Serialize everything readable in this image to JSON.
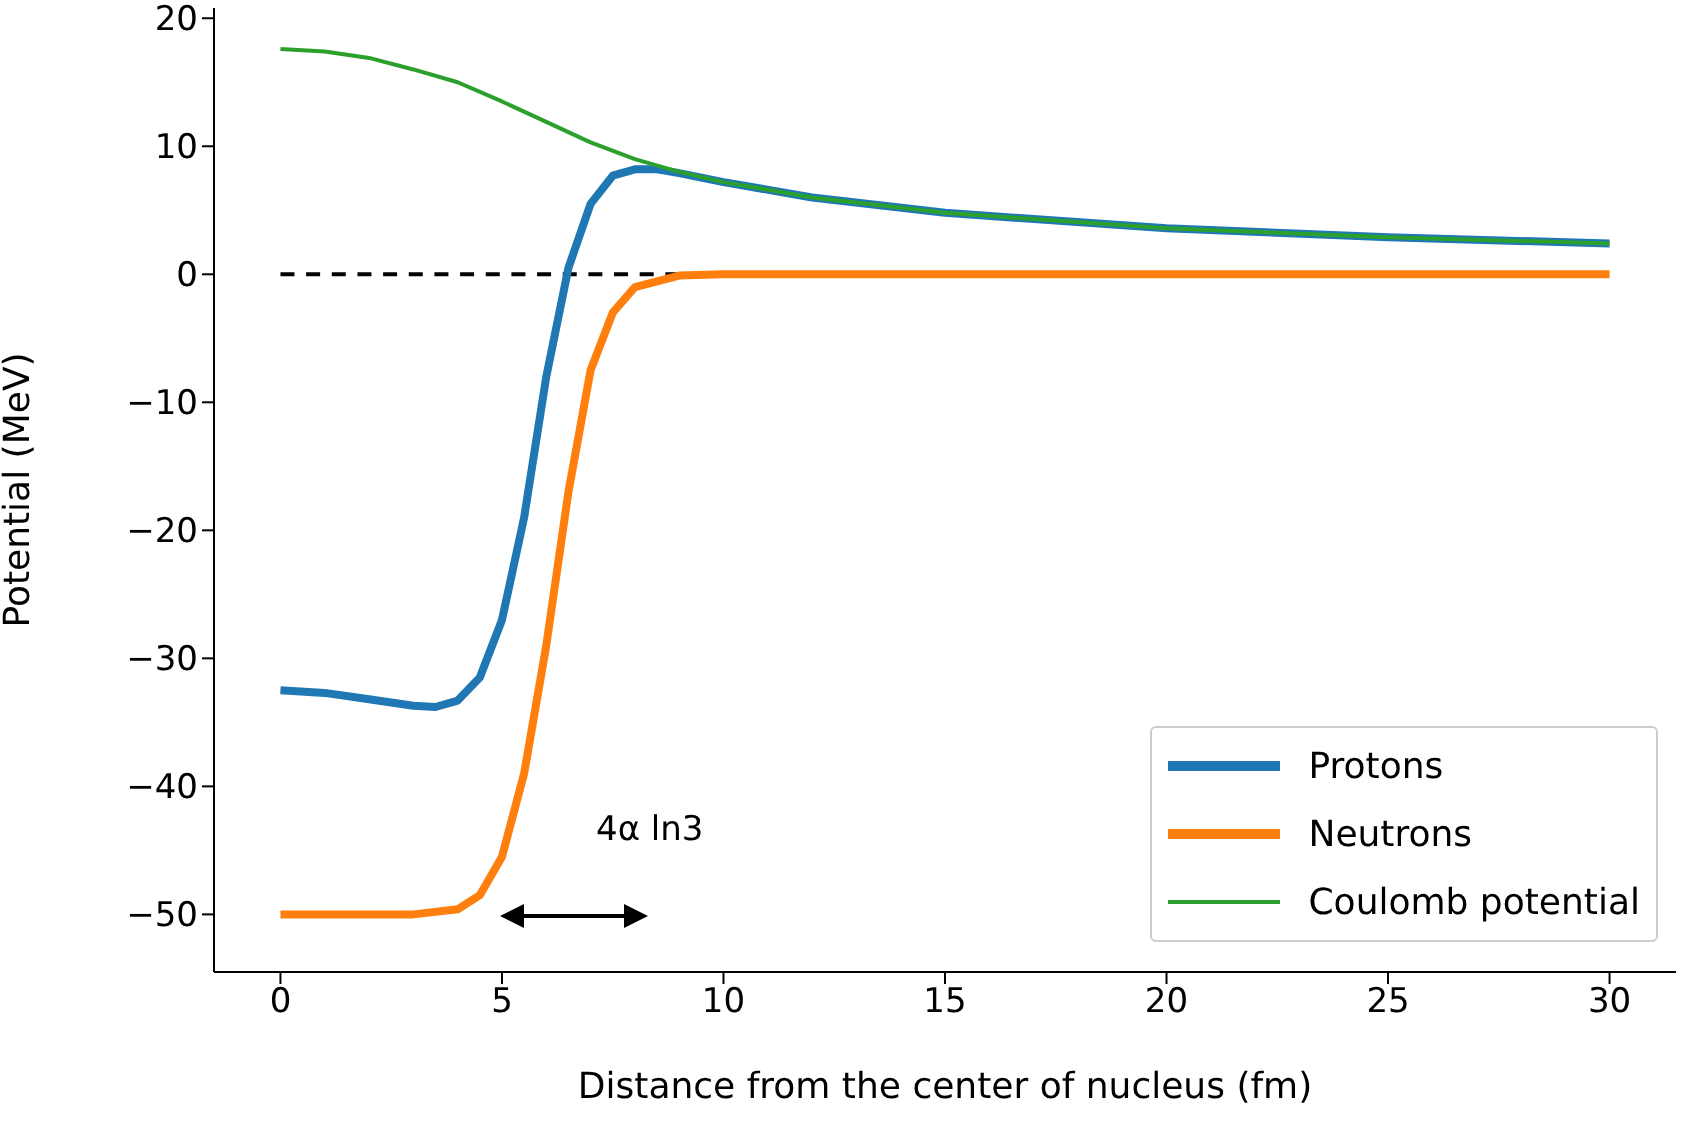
{
  "chart_data": {
    "type": "line",
    "xlabel": "Distance from the center of nucleus (fm)",
    "ylabel": "Potential (MeV)",
    "xlim": [
      -1.5,
      31.5
    ],
    "xticks": [
      0,
      5,
      10,
      15,
      20,
      25,
      30
    ],
    "ylim": [
      -54.5,
      20.8
    ],
    "yticks": [
      -50,
      -40,
      -30,
      -20,
      -10,
      0,
      10,
      20
    ],
    "grid": false,
    "legend": "bottom right",
    "marker": "none",
    "annotations": [
      "4α ln3"
    ],
    "series": [
      {
        "color": "#000000",
        "line_style": "dashed",
        "x": [
          0,
          9
        ],
        "values": [
          0,
          0
        ]
      },
      {
        "name": "Protons",
        "color": "#1f77b4",
        "x": [
          0,
          1,
          2,
          3,
          3.5,
          4,
          4.5,
          5,
          5.5,
          6,
          6.5,
          7,
          7.5,
          8,
          8.5,
          9,
          10,
          12,
          15,
          20,
          25,
          30
        ],
        "values": [
          -32.5,
          -32.7,
          -33.2,
          -33.7,
          -33.8,
          -33.3,
          -31.5,
          -27,
          -19,
          -8,
          0.5,
          5.5,
          7.7,
          8.2,
          8.2,
          7.9,
          7.2,
          6.0,
          4.8,
          3.6,
          2.9,
          2.4
        ]
      },
      {
        "name": "Neutrons",
        "color": "#ff7f0e",
        "x": [
          0,
          1,
          2,
          3,
          4,
          4.5,
          5,
          5.5,
          6,
          6.5,
          7,
          7.5,
          8,
          9,
          10,
          15,
          20,
          25,
          30
        ],
        "values": [
          -50,
          -50,
          -50,
          -50,
          -49.6,
          -48.5,
          -45.5,
          -39,
          -29,
          -17,
          -7.5,
          -3,
          -1,
          -0.1,
          0,
          0,
          0,
          0,
          0
        ]
      },
      {
        "name": "Coulomb potential",
        "color": "#2ca02c",
        "x": [
          0,
          1,
          2,
          3,
          4,
          5,
          6,
          7,
          8,
          9,
          10,
          12,
          15,
          20,
          25,
          30
        ],
        "values": [
          17.6,
          17.4,
          16.9,
          16.0,
          15.0,
          13.5,
          11.9,
          10.3,
          9.0,
          8.0,
          7.2,
          6.0,
          4.8,
          3.6,
          2.9,
          2.4
        ]
      }
    ]
  }
}
